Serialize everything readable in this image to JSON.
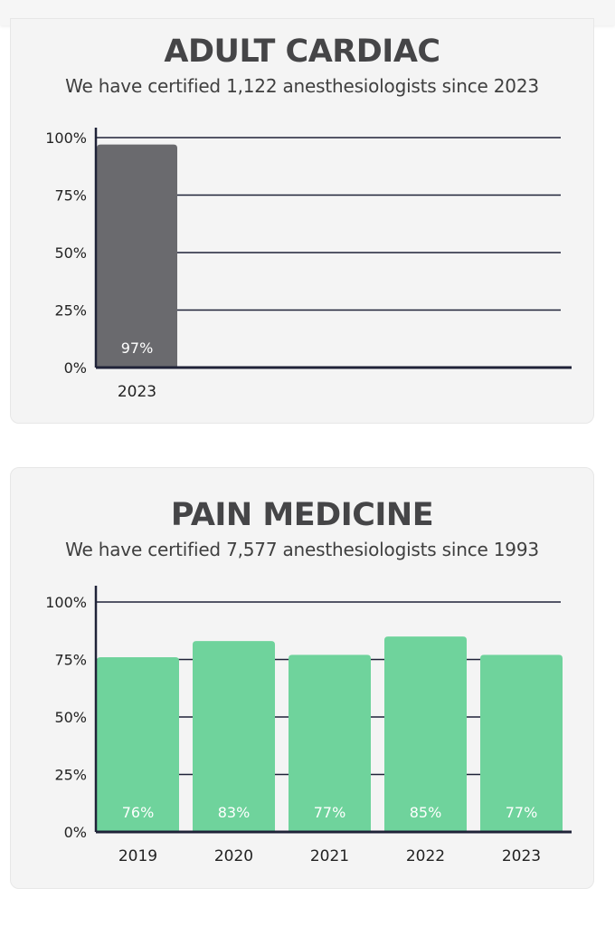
{
  "cards": [
    {
      "title": "ADULT CARDIAC",
      "subtitle": "We have certified 1,122 anesthesiologists since 2023"
    },
    {
      "title": "PAIN MEDICINE",
      "subtitle": "We have certified 7,577 anesthesiologists since 1993"
    }
  ],
  "chart_data": [
    {
      "type": "bar",
      "title": "ADULT CARDIAC",
      "categories": [
        "2023"
      ],
      "values": [
        97
      ],
      "value_labels": [
        "97%"
      ],
      "yticks": [
        "0%",
        "25%",
        "50%",
        "75%",
        "100%"
      ],
      "ylim": [
        0,
        100
      ],
      "grid": true,
      "color": "#6a6a6e",
      "label_color": "#ffffff"
    },
    {
      "type": "bar",
      "title": "PAIN MEDICINE",
      "categories": [
        "2019",
        "2020",
        "2021",
        "2022",
        "2023"
      ],
      "values": [
        76,
        83,
        77,
        85,
        77
      ],
      "value_labels": [
        "76%",
        "83%",
        "77%",
        "85%",
        "77%"
      ],
      "yticks": [
        "0%",
        "25%",
        "50%",
        "75%",
        "100%"
      ],
      "ylim": [
        0,
        100
      ],
      "grid": true,
      "color": "#6fd39c",
      "label_color": "#ffffff"
    }
  ]
}
